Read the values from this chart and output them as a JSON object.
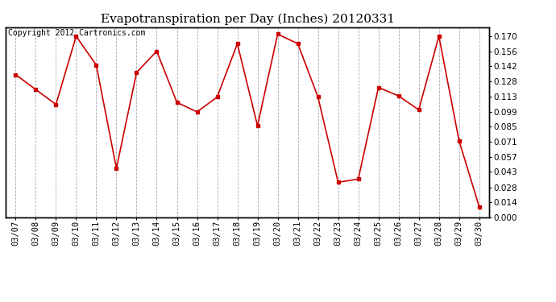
{
  "title": "Evapotranspiration per Day (Inches) 20120331",
  "copyright": "Copyright 2012 Cartronics.com",
  "dates": [
    "03/07",
    "03/08",
    "03/09",
    "03/10",
    "03/11",
    "03/12",
    "03/13",
    "03/14",
    "03/15",
    "03/16",
    "03/17",
    "03/18",
    "03/19",
    "03/20",
    "03/21",
    "03/22",
    "03/23",
    "03/24",
    "03/25",
    "03/26",
    "03/27",
    "03/28",
    "03/29",
    "03/30"
  ],
  "values": [
    0.134,
    0.12,
    0.106,
    0.17,
    0.143,
    0.046,
    0.136,
    0.156,
    0.108,
    0.099,
    0.113,
    0.163,
    0.086,
    0.172,
    0.163,
    0.113,
    0.033,
    0.036,
    0.122,
    0.114,
    0.101,
    0.17,
    0.072,
    0.01
  ],
  "line_color": "#cc0000",
  "marker": "s",
  "markersize": 2.5,
  "linewidth": 1.2,
  "ylim_min": 0.0,
  "ylim_max": 0.1785,
  "yticks": [
    0.0,
    0.014,
    0.028,
    0.043,
    0.057,
    0.071,
    0.085,
    0.099,
    0.113,
    0.128,
    0.142,
    0.156,
    0.17
  ],
  "background_color": "#ffffff",
  "grid_color": "#aaaaaa",
  "title_fontsize": 11,
  "copyright_fontsize": 7,
  "tick_fontsize": 7.5,
  "axes_border_color": "#000000"
}
